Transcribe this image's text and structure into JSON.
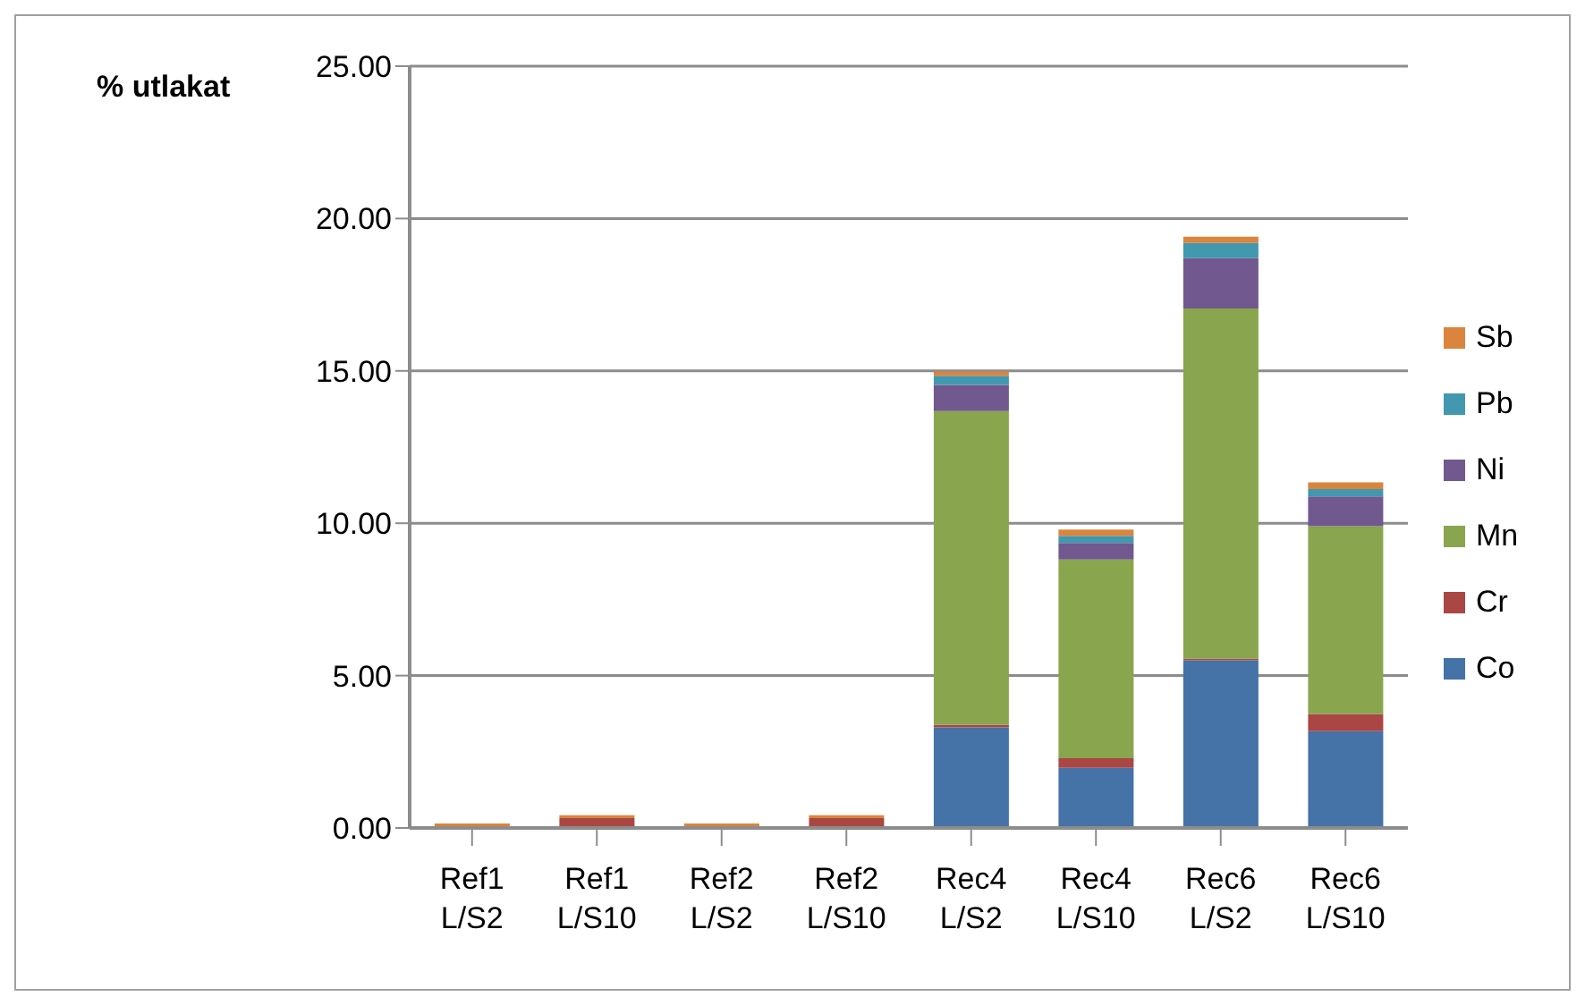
{
  "chart_data": {
    "type": "bar",
    "stacked": true,
    "ylabel": "% utlakat",
    "categories": [
      "Ref1 L/S2",
      "Ref1 L/S10",
      "Ref2 L/S2",
      "Ref2 L/S10",
      "Rec4 L/S2",
      "Rec4 L/S10",
      "Rec6 L/S2",
      "Rec6 L/S10"
    ],
    "series": [
      {
        "name": "Co",
        "color": "#4572a7",
        "values": [
          0,
          0,
          0,
          0,
          3.3,
          1.97,
          5.5,
          3.18
        ]
      },
      {
        "name": "Cr",
        "color": "#aa4643",
        "values": [
          0,
          0.32,
          0,
          0.32,
          0.08,
          0.32,
          0.05,
          0.56
        ]
      },
      {
        "name": "Mn",
        "color": "#89a54e",
        "values": [
          0,
          0,
          0,
          0,
          10.3,
          6.52,
          11.5,
          6.16
        ]
      },
      {
        "name": "Ni",
        "color": "#71588f",
        "values": [
          0,
          0,
          0,
          0,
          0.86,
          0.54,
          1.65,
          0.98
        ]
      },
      {
        "name": "Pb",
        "color": "#4198af",
        "values": [
          0.05,
          0,
          0.05,
          0,
          0.3,
          0.24,
          0.5,
          0.24
        ]
      },
      {
        "name": "Sb",
        "color": "#db843d",
        "values": [
          0.1,
          0.1,
          0.1,
          0.1,
          0.14,
          0.2,
          0.2,
          0.22
        ]
      }
    ],
    "ylim": [
      0,
      25
    ],
    "yticks": [
      {
        "value": 0,
        "label": "0.00"
      },
      {
        "value": 5,
        "label": "5.00"
      },
      {
        "value": 10,
        "label": "10.00"
      },
      {
        "value": 15,
        "label": "15.00"
      },
      {
        "value": 20,
        "label": "20.00"
      },
      {
        "value": 25,
        "label": "25.00"
      }
    ],
    "grid": "y",
    "legend": "right"
  }
}
